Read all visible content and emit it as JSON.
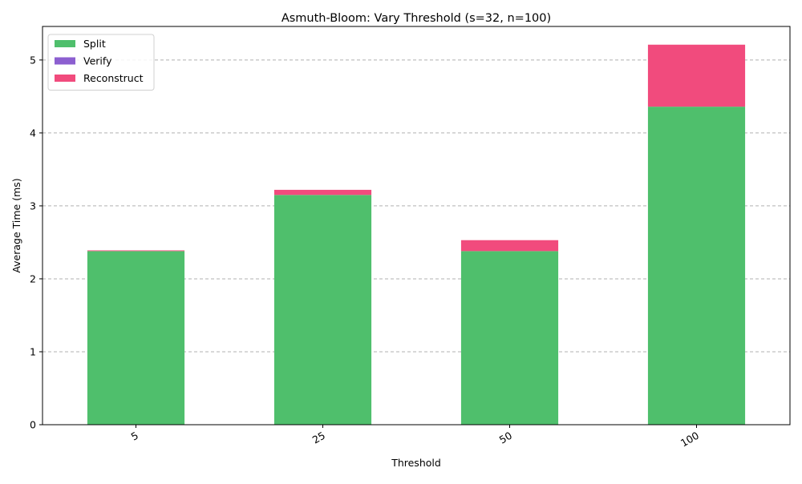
{
  "chart_data": {
    "type": "bar",
    "stacked": true,
    "title": "Asmuth-Bloom: Vary Threshold (s=32, n=100)",
    "xlabel": "Threshold",
    "ylabel": "Average Time (ms)",
    "categories": [
      "5",
      "25",
      "50",
      "100"
    ],
    "series": [
      {
        "name": "Split",
        "color": "#4fbf6c",
        "values": [
          2.38,
          3.15,
          2.38,
          4.36
        ]
      },
      {
        "name": "Verify",
        "color": "#8c5fd0",
        "values": [
          0.0,
          0.0,
          0.0,
          0.0
        ]
      },
      {
        "name": "Reconstruct",
        "color": "#f14b7d",
        "values": [
          0.01,
          0.07,
          0.15,
          0.85
        ]
      }
    ],
    "ylim": [
      0,
      5.46
    ],
    "yticks": [
      0,
      1,
      2,
      3,
      4,
      5
    ],
    "grid": "y",
    "legend": "top-left",
    "xtick_rotation": 30
  }
}
